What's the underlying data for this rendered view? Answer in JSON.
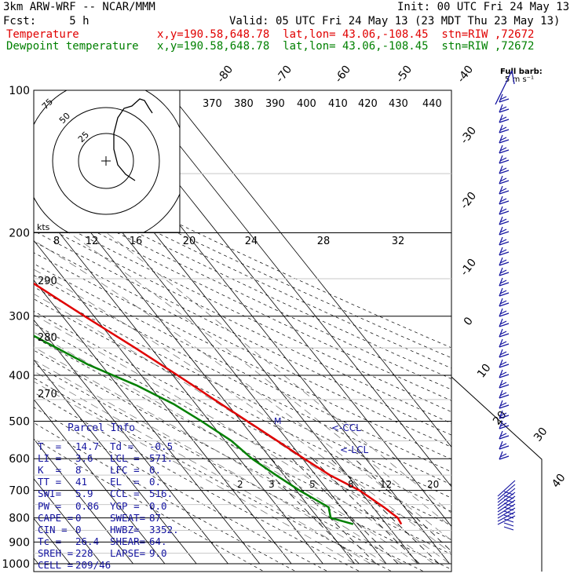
{
  "header": {
    "model": "3km ARW-WRF -- NCAR/MMM",
    "init": "Init: 00 UTC Fri 24 May 13",
    "fcst": "Fcst:     5 h",
    "valid": "Valid: 05 UTC Fri 24 May 13 (23 MDT Thu 23 May 13)",
    "temp_label": "Temperature",
    "temp_loc": "x,y=190.58,648.78  lat,lon= 43.06,-108.45  stn=RIW ,72672",
    "dew_label": "Dewpoint temperature",
    "dew_loc": "x,y=190.58,648.78  lat,lon= 43.06,-108.45  stn=RIW ,72672"
  },
  "colors": {
    "temperature": "#e00000",
    "dewpoint": "#008000",
    "barbs": "#1414a0",
    "parcel_text": "#1414a0"
  },
  "chart_data": {
    "type": "line",
    "chart_kind": "Skew-T log-P",
    "y_axis": "pressure (hPa)",
    "y_scale": "log",
    "ylim": [
      1000,
      100
    ],
    "pressure_labels": [
      "100",
      "200",
      "300",
      "400",
      "500",
      "600",
      "700",
      "800",
      "900",
      "1000"
    ],
    "isotherm_labels": [
      "-80",
      "-70",
      "-60",
      "-50",
      "-40",
      "-30",
      "-20",
      "-10",
      "0",
      "10",
      "20",
      "30",
      "40"
    ],
    "theta_labels": [
      "370",
      "380",
      "390",
      "400",
      "410",
      "420",
      "430",
      "440",
      "290",
      "280",
      "270"
    ],
    "mixing_ratio_labels": [
      "2",
      "3",
      "5",
      "8",
      "12",
      "20"
    ],
    "hodograph": {
      "units_label": "kts",
      "ring_labels": [
        "75",
        "50",
        "25"
      ],
      "speed_labels": [
        "8",
        "12",
        "16",
        "20",
        "24",
        "28",
        "32"
      ]
    },
    "markers": {
      "ccl": "<-CCL",
      "lcl": "<-LCL",
      "m": "M"
    },
    "barb_legend": {
      "title": "Full barb:",
      "value": "5 m s⁻¹"
    },
    "series": [
      {
        "name": "Temperature",
        "color": "#e00000",
        "points": [
          {
            "p": 825,
            "t": 14.7
          },
          {
            "p": 800,
            "t": 15.2
          },
          {
            "p": 760,
            "t": 13.5
          },
          {
            "p": 700,
            "t": 10.0
          },
          {
            "p": 650,
            "t": 4.5
          },
          {
            "p": 600,
            "t": 0.5
          },
          {
            "p": 550,
            "t": -3.5
          },
          {
            "p": 500,
            "t": -8.0
          },
          {
            "p": 450,
            "t": -13.0
          },
          {
            "p": 400,
            "t": -18.5
          },
          {
            "p": 350,
            "t": -25.0
          },
          {
            "p": 300,
            "t": -33.0
          },
          {
            "p": 250,
            "t": -42.0
          },
          {
            "p": 220,
            "t": -48.0
          },
          {
            "p": 205,
            "t": -53.0
          },
          {
            "p": 190,
            "t": -54.0
          },
          {
            "p": 170,
            "t": -54.0
          },
          {
            "p": 150,
            "t": -54.0
          },
          {
            "p": 130,
            "t": -56.5
          },
          {
            "p": 115,
            "t": -58.5
          },
          {
            "p": 100,
            "t": -59.5
          }
        ]
      },
      {
        "name": "Dewpoint temperature",
        "color": "#008000",
        "points": [
          {
            "p": 825,
            "t": -0.5
          },
          {
            "p": 800,
            "t": -6.0
          },
          {
            "p": 760,
            "t": -4.0
          },
          {
            "p": 700,
            "t": -9.0
          },
          {
            "p": 650,
            "t": -12.5
          },
          {
            "p": 600,
            "t": -16.0
          },
          {
            "p": 550,
            "t": -18.0
          },
          {
            "p": 500,
            "t": -22.5
          },
          {
            "p": 460,
            "t": -27.0
          },
          {
            "p": 420,
            "t": -34.0
          },
          {
            "p": 380,
            "t": -44.0
          },
          {
            "p": 330,
            "t": -54.0
          },
          {
            "p": 300,
            "t": -59.0
          },
          {
            "p": 260,
            "t": -70.0
          },
          {
            "p": 230,
            "t": -68.0
          },
          {
            "p": 200,
            "t": -66.0
          },
          {
            "p": 170,
            "t": -63.0
          },
          {
            "p": 145,
            "t": -64.0
          },
          {
            "p": 125,
            "t": -70.0
          },
          {
            "p": 100,
            "t": -81.0
          }
        ]
      }
    ],
    "parcel_info": {
      "title": "Parcel Info",
      "rows": [
        [
          "T  =",
          "14.7",
          "Td =",
          "-0.5"
        ],
        [
          "LI =",
          "3.6",
          "LCL =",
          "571."
        ],
        [
          "K  =",
          "8",
          "LFC =",
          "0."
        ],
        [
          "TT =",
          "41",
          "EL  =",
          "0."
        ],
        [
          "SWI=",
          "5.9",
          "CCL =",
          "516."
        ],
        [
          "PW =",
          "0.86",
          "YGP =",
          "0.0"
        ],
        [
          "CAPE =",
          "0",
          "SWEAT=",
          "87"
        ],
        [
          "CIN =",
          "0",
          "HWBZ=",
          "3352."
        ],
        [
          "Tc =",
          "26.4",
          "SHEAR=",
          "64."
        ],
        [
          "SREH =",
          "228",
          "LAPSE=",
          "9.0"
        ],
        [
          "CELL =",
          "209/46",
          "",
          ""
        ]
      ]
    }
  }
}
